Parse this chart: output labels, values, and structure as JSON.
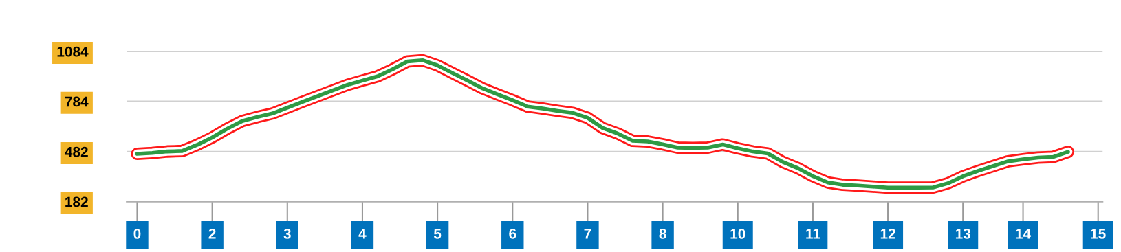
{
  "chart_data": {
    "type": "line",
    "categories": [
      "0",
      null,
      null,
      null,
      null,
      "2",
      null,
      null,
      null,
      null,
      "3",
      null,
      null,
      null,
      null,
      "4",
      null,
      null,
      null,
      null,
      "5",
      null,
      null,
      null,
      null,
      "6",
      null,
      null,
      null,
      null,
      "7",
      null,
      null,
      null,
      null,
      "8",
      null,
      null,
      null,
      null,
      "10",
      null,
      null,
      null,
      null,
      "11",
      null,
      null,
      null,
      null,
      "12",
      null,
      null,
      null,
      null,
      "13",
      null,
      null,
      null,
      "14",
      null,
      null,
      null,
      null,
      "15"
    ],
    "series": [
      {
        "color": "#2e9a44",
        "values": [
          469,
          474,
          483,
          486,
          523,
          567,
          620,
          666,
          690,
          711,
          746,
          781,
          815,
          849,
          883,
          909,
          934,
          976,
          1024,
          1031,
          1000,
          954,
          909,
          862,
          826,
          791,
          753,
          741,
          727,
          715,
          685,
          624,
          591,
          547,
          543,
          526,
          506,
          504,
          506,
          525,
          502,
          483,
          471,
          420,
          383,
          335,
          297,
          283,
          278,
          272,
          266,
          266,
          266,
          267,
          292,
          334,
          366,
          395,
          424,
          436,
          446,
          450,
          481,
          null,
          null
        ]
      }
    ],
    "ylim": [
      182,
      1084
    ],
    "yticks": [
      182,
      482,
      784,
      1084
    ],
    "grid": "y",
    "marker": "none",
    "line_style": "solid"
  }
}
